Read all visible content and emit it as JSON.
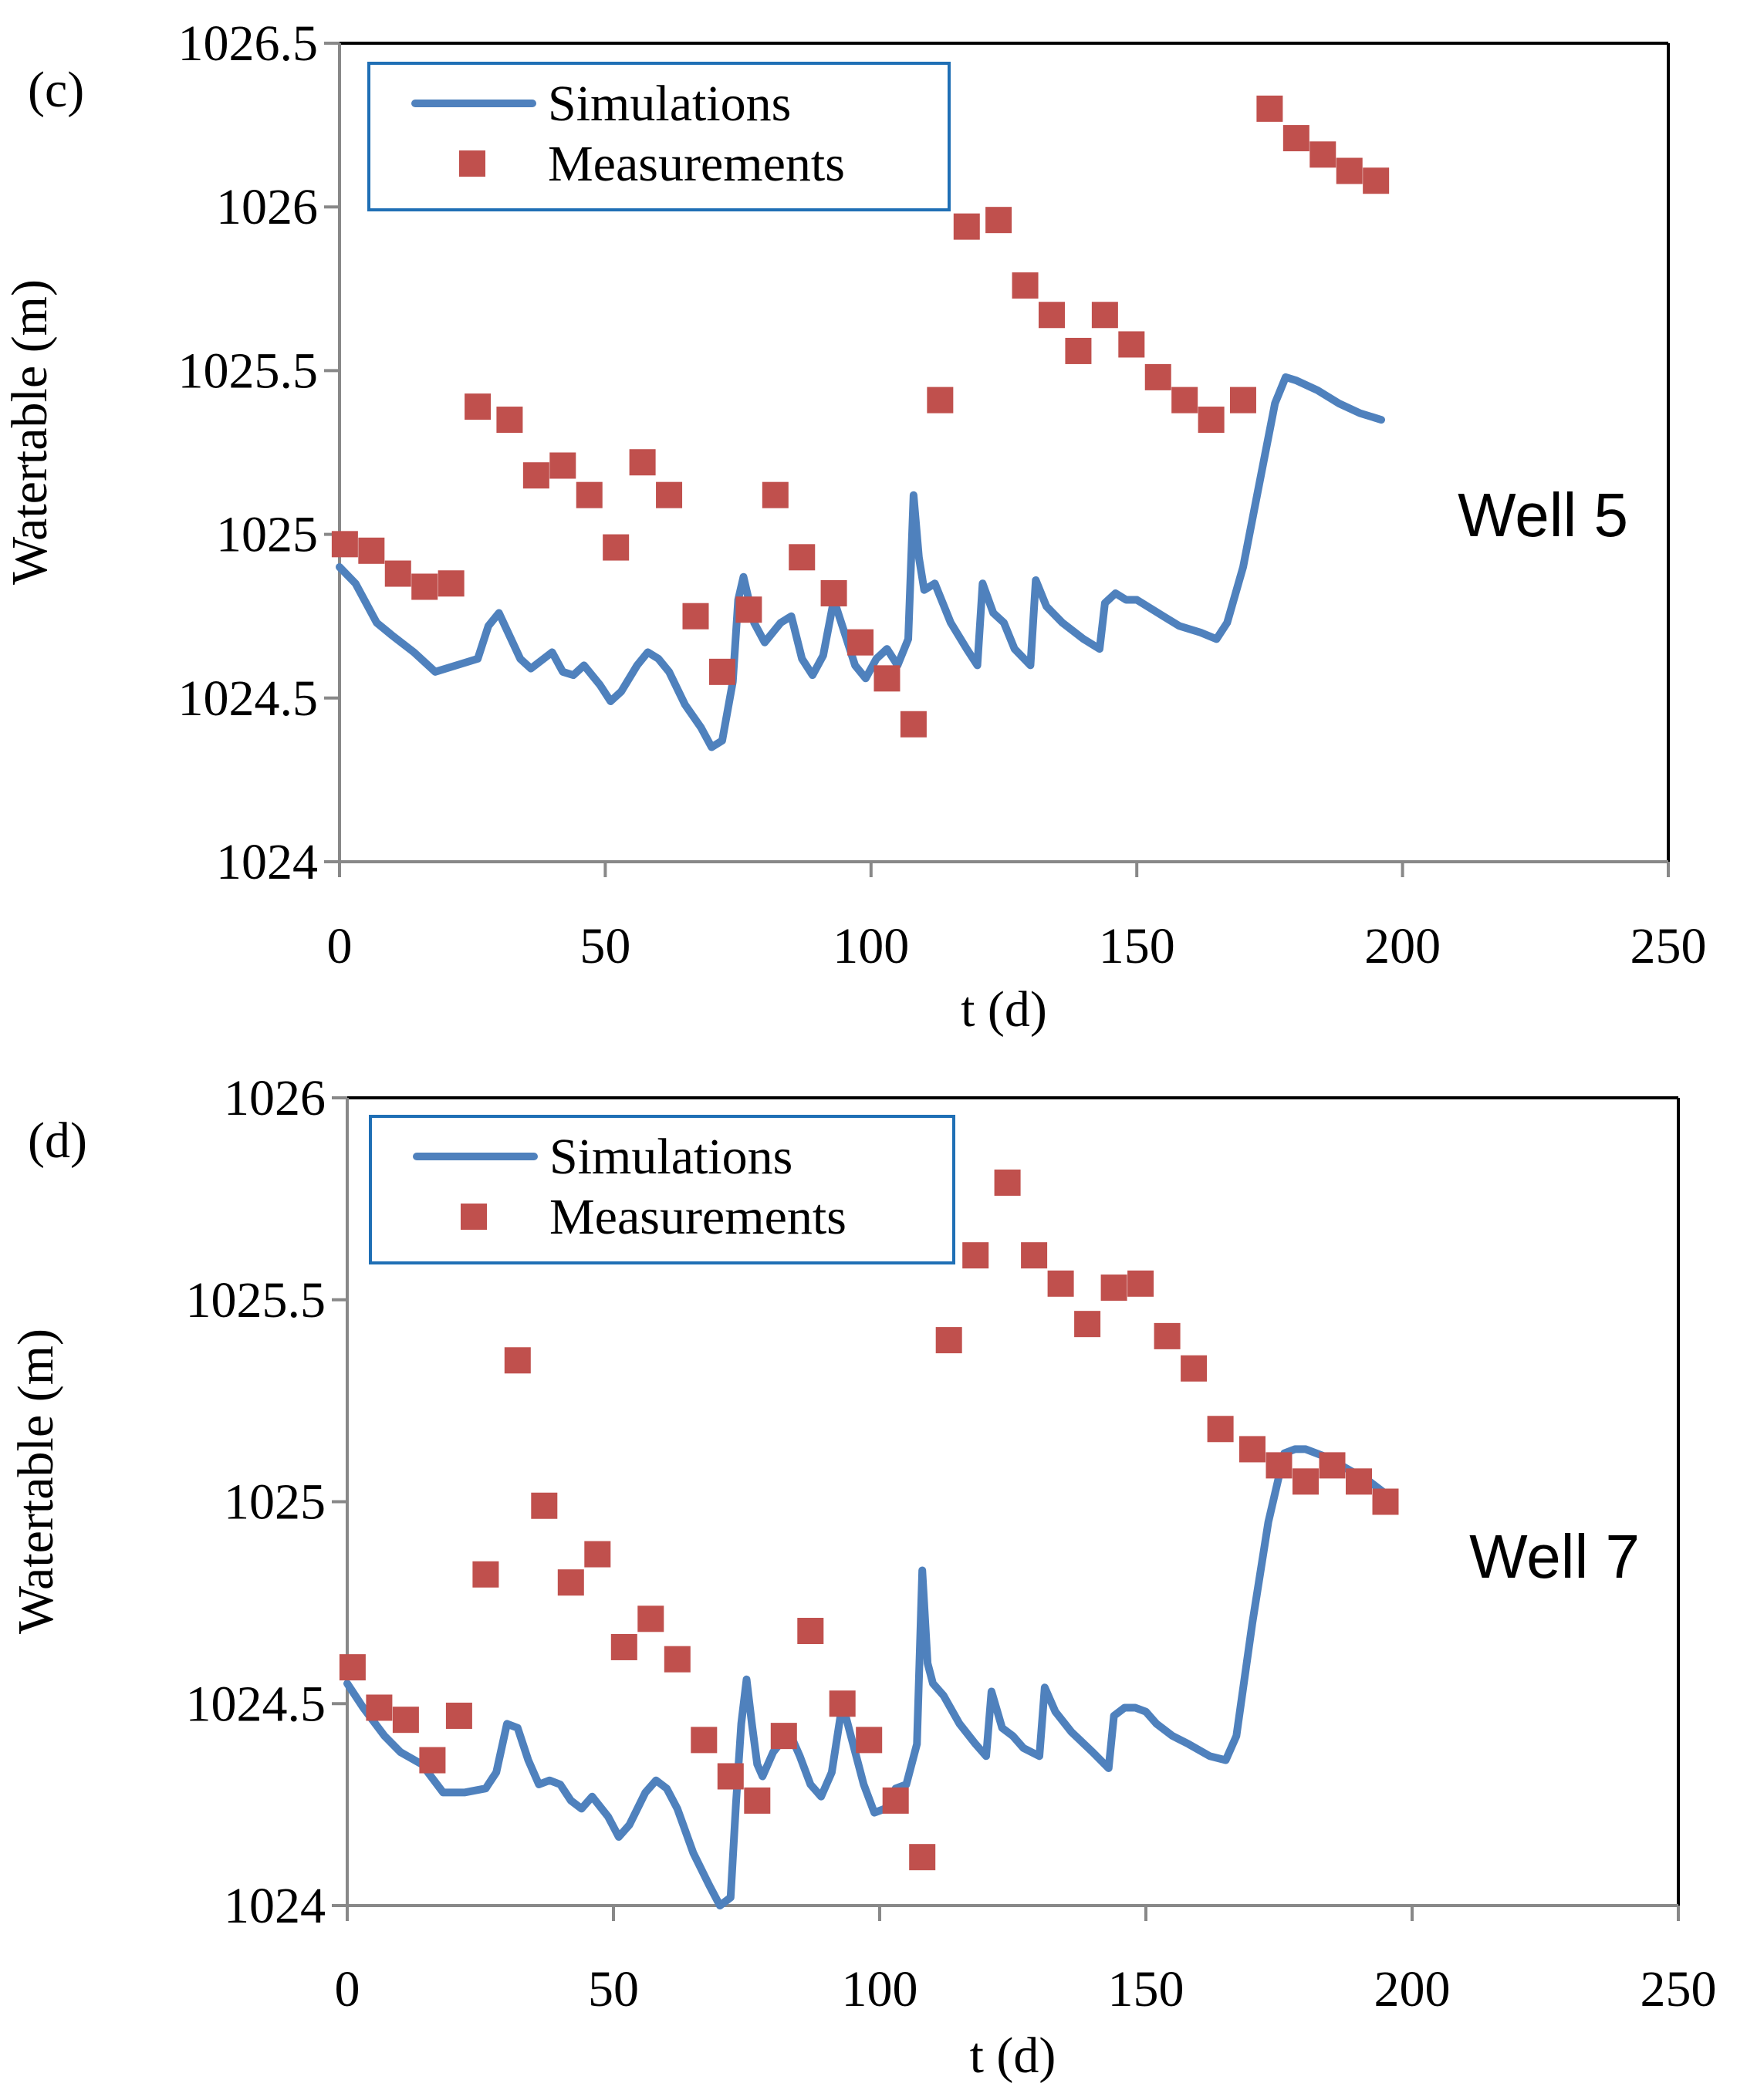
{
  "colors": {
    "simulation": "#4F81BD",
    "measurement": "#C0504D",
    "legend_border": "#1F6FB5",
    "axis": "#888888",
    "frame": "#000000"
  },
  "chart_data": [
    {
      "type": "line+scatter",
      "panel_label": "(c)",
      "annotation": "Well 5",
      "xlabel": "t (d)",
      "ylabel": "Watertable (m)",
      "xlim": [
        0,
        250
      ],
      "ylim": [
        1024,
        1026.5
      ],
      "xticks": [
        "0",
        "50",
        "100",
        "150",
        "200",
        "250"
      ],
      "yticks": [
        "1024",
        "1024.5",
        "1025",
        "1025.5",
        "1026",
        "1026.5"
      ],
      "legend": {
        "simulation": "Simulations",
        "measurement": "Measurements"
      },
      "series": [
        {
          "name": "Simulations",
          "style": "line",
          "x": [
            0,
            3,
            7,
            10,
            14,
            18,
            22,
            26,
            28,
            30,
            34,
            36,
            40,
            42,
            44,
            46,
            49,
            51,
            53,
            56,
            58,
            60,
            62,
            65,
            68,
            70,
            72,
            74,
            75,
            76,
            78,
            80,
            83,
            85,
            87,
            89,
            91,
            93,
            95,
            97,
            99,
            101,
            103,
            105,
            107,
            108,
            109,
            110,
            112,
            115,
            118,
            120,
            121,
            123,
            125,
            127,
            130,
            131,
            133,
            136,
            140,
            143,
            144,
            146,
            148,
            150,
            152,
            155,
            158,
            162,
            165,
            167,
            170,
            173,
            176,
            178,
            180,
            184,
            188,
            192,
            196
          ],
          "values": [
            1024.9,
            1024.85,
            1024.73,
            1024.69,
            1024.64,
            1024.58,
            1024.6,
            1024.62,
            1024.72,
            1024.76,
            1024.62,
            1024.59,
            1024.64,
            1024.58,
            1024.57,
            1024.6,
            1024.54,
            1024.49,
            1024.52,
            1024.6,
            1024.64,
            1024.62,
            1024.58,
            1024.48,
            1024.41,
            1024.35,
            1024.37,
            1024.55,
            1024.8,
            1024.87,
            1024.73,
            1024.67,
            1024.73,
            1024.75,
            1024.62,
            1024.57,
            1024.63,
            1024.8,
            1024.7,
            1024.6,
            1024.56,
            1024.62,
            1024.65,
            1024.6,
            1024.68,
            1025.12,
            1024.93,
            1024.83,
            1024.85,
            1024.73,
            1024.65,
            1024.6,
            1024.85,
            1024.76,
            1024.73,
            1024.65,
            1024.6,
            1024.86,
            1024.78,
            1024.73,
            1024.68,
            1024.65,
            1024.79,
            1024.82,
            1024.8,
            1024.8,
            1024.78,
            1024.75,
            1024.72,
            1024.7,
            1024.68,
            1024.73,
            1024.9,
            1025.15,
            1025.4,
            1025.48,
            1025.47,
            1025.44,
            1025.4,
            1025.37,
            1025.35
          ]
        },
        {
          "name": "Measurements",
          "style": "markers",
          "x": [
            1,
            6,
            11,
            16,
            21,
            26,
            32,
            37,
            42,
            47,
            52,
            57,
            62,
            67,
            72,
            77,
            82,
            87,
            93,
            98,
            103,
            108,
            113,
            118,
            124,
            129,
            134,
            139,
            144,
            149,
            154,
            159,
            164,
            170,
            175,
            180,
            185,
            190,
            195
          ],
          "values": [
            1024.97,
            1024.95,
            1024.88,
            1024.84,
            1024.85,
            1025.39,
            1025.35,
            1025.18,
            1025.21,
            1025.12,
            1024.96,
            1025.22,
            1025.12,
            1024.75,
            1024.58,
            1024.77,
            1025.12,
            1024.93,
            1024.82,
            1024.67,
            1024.56,
            1024.42,
            1025.41,
            1025.94,
            1025.96,
            1025.76,
            1025.67,
            1025.56,
            1025.67,
            1025.58,
            1025.48,
            1025.41,
            1025.35,
            1025.41,
            1026.3,
            1026.21,
            1026.16,
            1026.11,
            1026.08
          ]
        }
      ]
    },
    {
      "type": "line+scatter",
      "panel_label": "(d)",
      "annotation": "Well 7",
      "xlabel": "t (d)",
      "ylabel": "Watertable (m)",
      "xlim": [
        0,
        250
      ],
      "ylim": [
        1024,
        1026
      ],
      "xticks": [
        "0",
        "50",
        "100",
        "150",
        "200",
        "250"
      ],
      "yticks": [
        "1024",
        "1024.5",
        "1025",
        "1025.5",
        "1026"
      ],
      "legend": {
        "simulation": "Simulations",
        "measurement": "Measurements"
      },
      "series": [
        {
          "name": "Simulations",
          "style": "line",
          "x": [
            0,
            3,
            7,
            10,
            14,
            18,
            22,
            26,
            28,
            30,
            32,
            34,
            36,
            38,
            40,
            42,
            44,
            46,
            49,
            51,
            53,
            56,
            58,
            60,
            62,
            65,
            68,
            70,
            72,
            73,
            74,
            75,
            76,
            77,
            78,
            80,
            83,
            85,
            87,
            89,
            91,
            93,
            95,
            97,
            99,
            101,
            103,
            105,
            107,
            108,
            109,
            110,
            112,
            115,
            118,
            120,
            121,
            123,
            125,
            127,
            130,
            131,
            133,
            136,
            140,
            143,
            144,
            146,
            148,
            150,
            152,
            155,
            158,
            162,
            165,
            167,
            170,
            173,
            176,
            178,
            180,
            184,
            188,
            192,
            196
          ],
          "values": [
            1024.55,
            1024.49,
            1024.42,
            1024.38,
            1024.35,
            1024.28,
            1024.28,
            1024.29,
            1024.33,
            1024.45,
            1024.44,
            1024.36,
            1024.3,
            1024.31,
            1024.3,
            1024.26,
            1024.24,
            1024.27,
            1024.22,
            1024.17,
            1024.2,
            1024.28,
            1024.31,
            1024.29,
            1024.24,
            1024.13,
            1024.05,
            1024.0,
            1024.02,
            1024.25,
            1024.45,
            1024.56,
            1024.45,
            1024.35,
            1024.32,
            1024.38,
            1024.43,
            1024.37,
            1024.3,
            1024.27,
            1024.33,
            1024.5,
            1024.4,
            1024.3,
            1024.23,
            1024.24,
            1024.29,
            1024.3,
            1024.4,
            1024.83,
            1024.6,
            1024.55,
            1024.52,
            1024.45,
            1024.4,
            1024.37,
            1024.53,
            1024.44,
            1024.42,
            1024.39,
            1024.37,
            1024.54,
            1024.48,
            1024.43,
            1024.38,
            1024.34,
            1024.47,
            1024.49,
            1024.49,
            1024.48,
            1024.45,
            1024.42,
            1024.4,
            1024.37,
            1024.36,
            1024.42,
            1024.7,
            1024.95,
            1025.12,
            1025.13,
            1025.13,
            1025.11,
            1025.08,
            1025.05,
            1025.01
          ]
        },
        {
          "name": "Measurements",
          "style": "markers",
          "x": [
            1,
            6,
            11,
            16,
            21,
            26,
            32,
            37,
            42,
            47,
            52,
            57,
            62,
            67,
            72,
            77,
            82,
            87,
            93,
            98,
            103,
            108,
            113,
            118,
            124,
            129,
            134,
            139,
            144,
            149,
            154,
            159,
            164,
            170,
            175,
            180,
            185,
            190,
            195
          ],
          "values": [
            1024.59,
            1024.49,
            1024.46,
            1024.36,
            1024.47,
            1024.82,
            1025.35,
            1024.99,
            1024.8,
            1024.87,
            1024.64,
            1024.71,
            1024.61,
            1024.41,
            1024.32,
            1024.26,
            1024.42,
            1024.68,
            1024.5,
            1024.41,
            1024.26,
            1024.12,
            1025.4,
            1025.61,
            1025.79,
            1025.61,
            1025.54,
            1025.44,
            1025.53,
            1025.54,
            1025.41,
            1025.33,
            1025.18,
            1025.13,
            1025.09,
            1025.05,
            1025.09,
            1025.05,
            1025.0
          ]
        }
      ]
    }
  ]
}
